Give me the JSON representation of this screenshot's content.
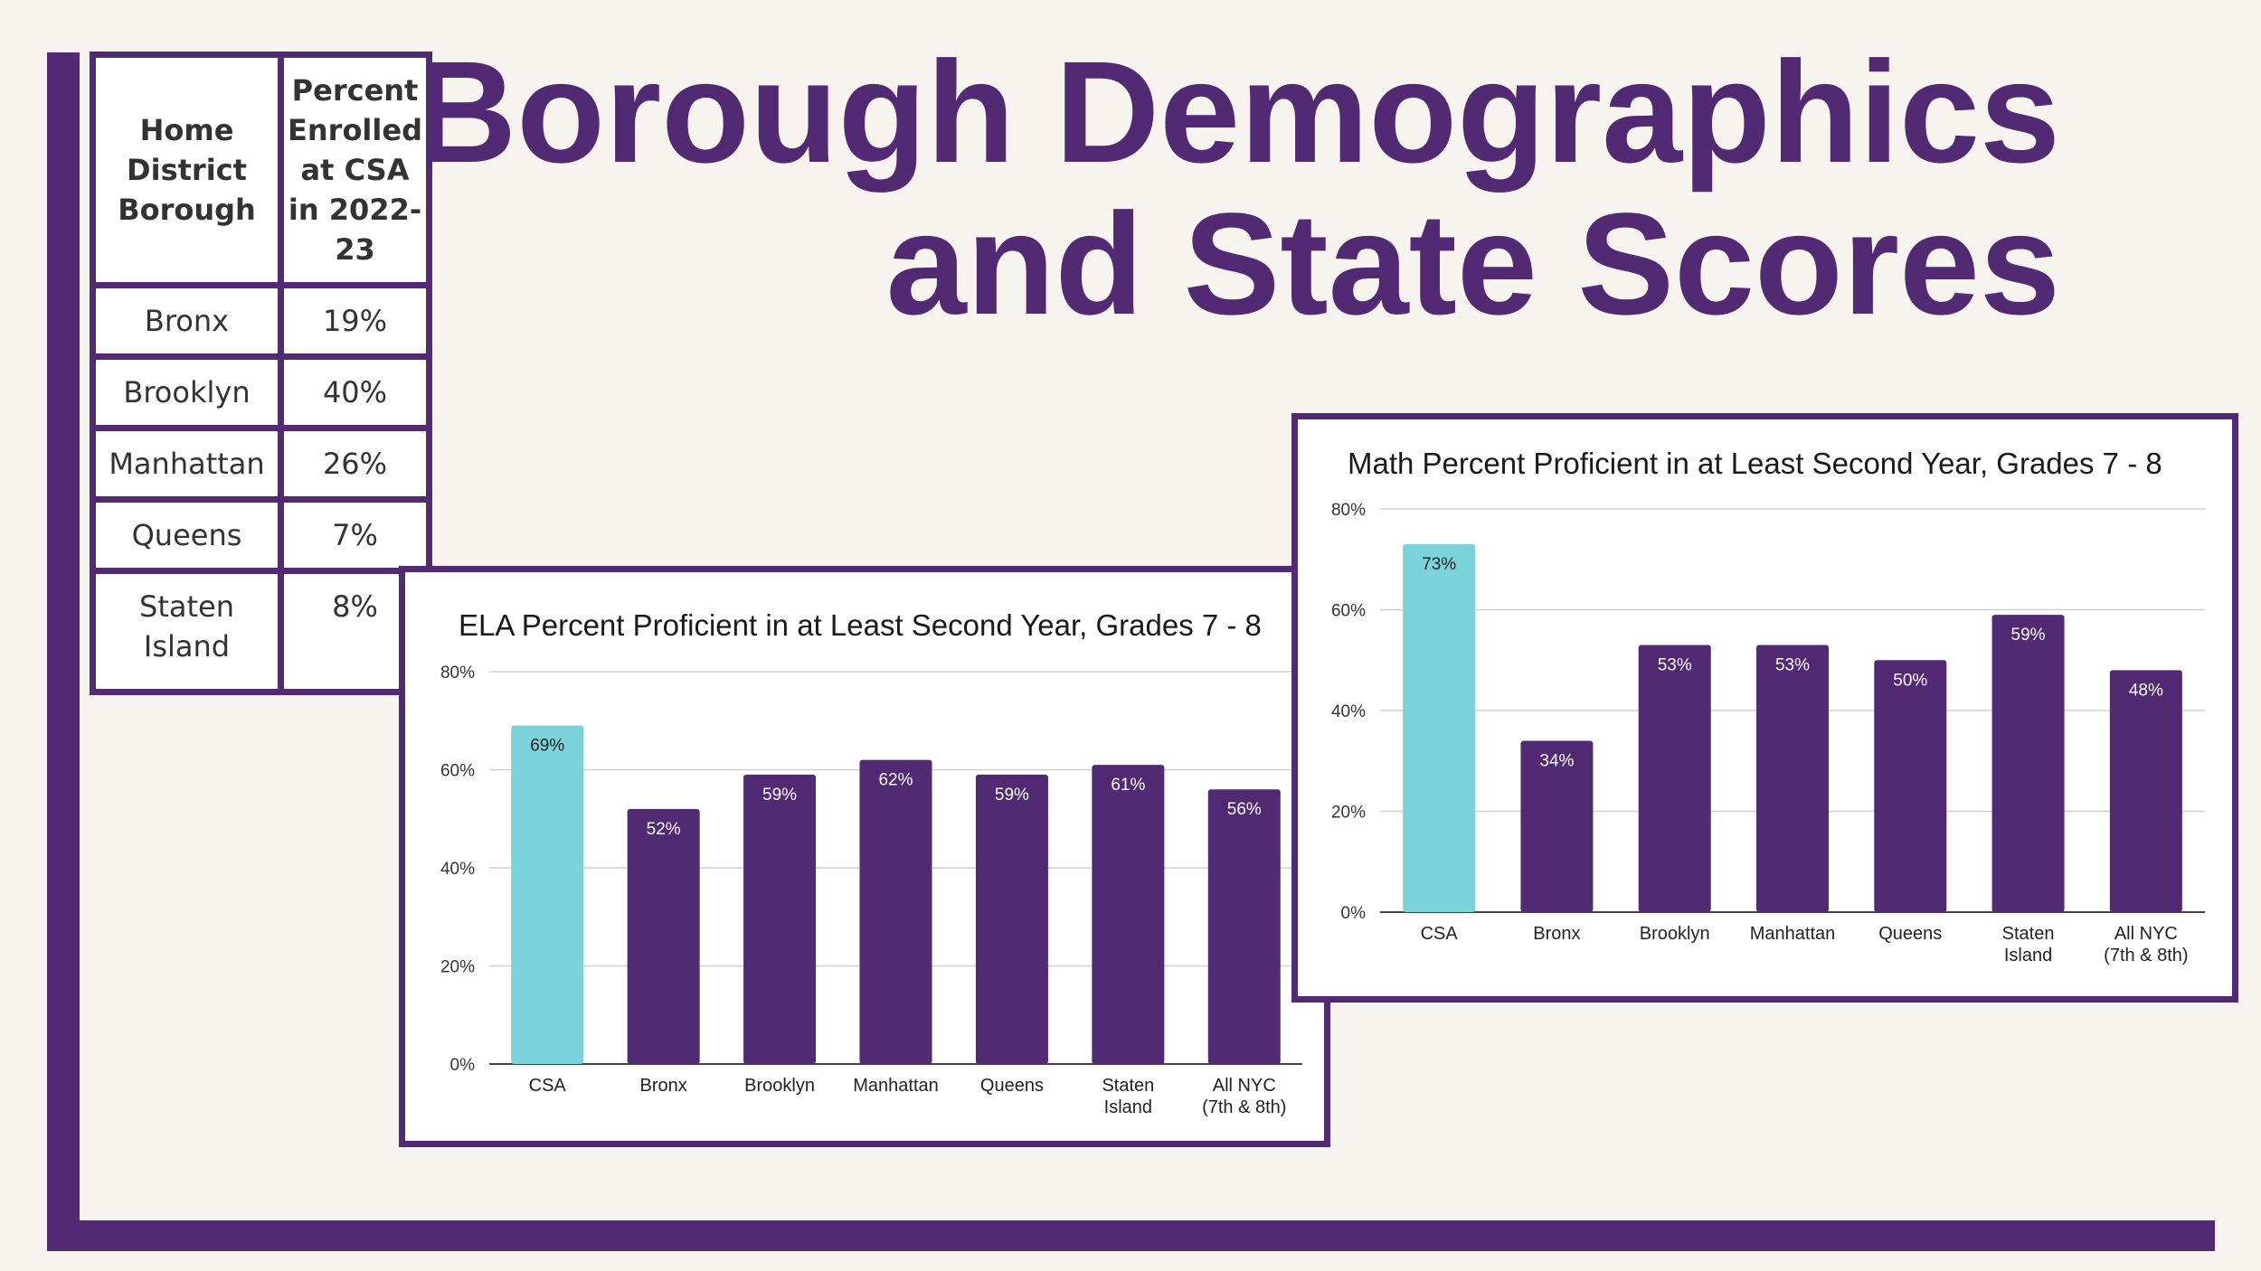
{
  "title": {
    "line1": "Borough Demographics",
    "line2": "and State Scores"
  },
  "colors": {
    "brand": "#522a73",
    "highlight": "#7ad3da",
    "background": "#f7f3ee"
  },
  "enrollment_table": {
    "headers": [
      "Home District Borough",
      "Percent Enrolled at CSA in 2022-23"
    ],
    "rows": [
      {
        "borough": "Bronx",
        "percent": "19%"
      },
      {
        "borough": "Brooklyn",
        "percent": "40%"
      },
      {
        "borough": "Manhattan",
        "percent": "26%"
      },
      {
        "borough": "Queens",
        "percent": "7%"
      },
      {
        "borough": "Staten Island",
        "percent": "8%"
      }
    ]
  },
  "chart_data": [
    {
      "id": "ela",
      "type": "bar",
      "title": "ELA Percent Proficient in at Least Second Year, Grades 7 - 8",
      "categories": [
        "CSA",
        "Bronx",
        "Brooklyn",
        "Manhattan",
        "Queens",
        "Staten Island",
        "All NYC (7th & 8th)"
      ],
      "category_lines": [
        [
          "CSA"
        ],
        [
          "Bronx"
        ],
        [
          "Brooklyn"
        ],
        [
          "Manhattan"
        ],
        [
          "Queens"
        ],
        [
          "Staten",
          "Island"
        ],
        [
          "All NYC",
          "(7th & 8th)"
        ]
      ],
      "values": [
        69,
        52,
        59,
        62,
        59,
        61,
        56
      ],
      "data_labels": [
        "69%",
        "52%",
        "59%",
        "62%",
        "59%",
        "61%",
        "56%"
      ],
      "highlight_index": 0,
      "ylim": [
        0,
        80
      ],
      "yticks": [
        0,
        20,
        40,
        60,
        80
      ],
      "ytick_labels": [
        "0%",
        "20%",
        "40%",
        "60%",
        "80%"
      ],
      "xlabel": "",
      "ylabel": "",
      "grid": true
    },
    {
      "id": "math",
      "type": "bar",
      "title": "Math Percent Proficient in at Least Second Year, Grades 7 - 8",
      "categories": [
        "CSA",
        "Bronx",
        "Brooklyn",
        "Manhattan",
        "Queens",
        "Staten Island",
        "All NYC (7th & 8th)"
      ],
      "category_lines": [
        [
          "CSA"
        ],
        [
          "Bronx"
        ],
        [
          "Brooklyn"
        ],
        [
          "Manhattan"
        ],
        [
          "Queens"
        ],
        [
          "Staten",
          "Island"
        ],
        [
          "All NYC",
          "(7th & 8th)"
        ]
      ],
      "values": [
        73,
        34,
        53,
        53,
        50,
        59,
        48
      ],
      "data_labels": [
        "73%",
        "34%",
        "53%",
        "53%",
        "50%",
        "59%",
        "48%"
      ],
      "highlight_index": 0,
      "ylim": [
        0,
        80
      ],
      "yticks": [
        0,
        20,
        40,
        60,
        80
      ],
      "ytick_labels": [
        "0%",
        "20%",
        "40%",
        "60%",
        "80%"
      ],
      "xlabel": "",
      "ylabel": "",
      "grid": true
    }
  ]
}
